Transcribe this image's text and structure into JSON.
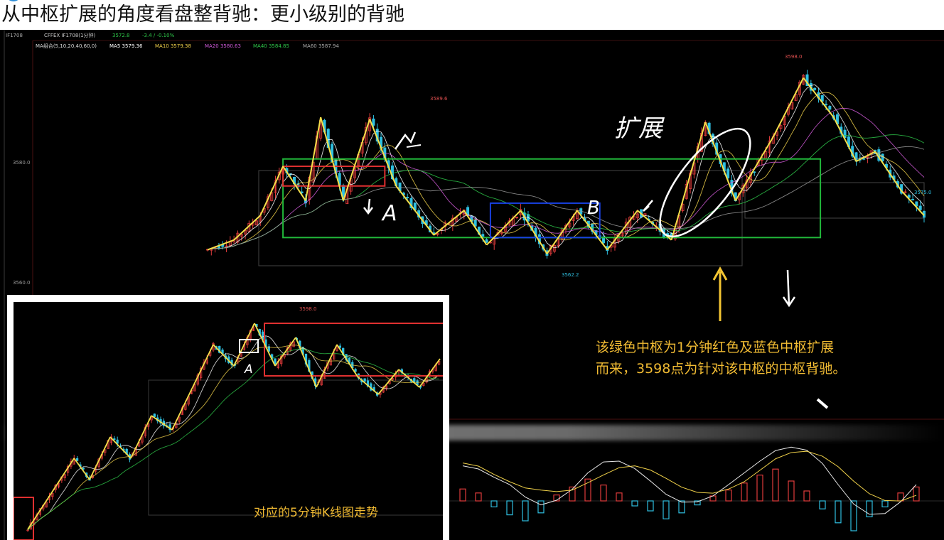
{
  "title": "从中枢扩展的角度看盘整背驰：更小级别的背驰",
  "hud": {
    "symbol": "IF1708",
    "row1": "CFFEX IF1708(1分钟)",
    "last_price": "3572.8",
    "change": "-3.4 / -0.10%",
    "ma_label": "MA组合(5,10,20,40,60,0)",
    "ma5": "MA5 3579.36",
    "ma10": "MA10 3579.38",
    "ma20": "MA20 3580.63",
    "ma40": "MA40 3584.85",
    "ma60": "MA60 3587.94"
  },
  "axis": {
    "y_top": "3580.0",
    "y_bottom": "3560.0"
  },
  "price_labels": {
    "peak_left": "3589.6",
    "peak_right": "3598.0",
    "low_mid": "3562.2",
    "right_end": "3575.0"
  },
  "annotations": {
    "label_a": "A",
    "label_b": "B",
    "expand_text": "扩展",
    "note_line1": "该绿色中枢为1分钟红色及蓝色中枢扩展",
    "note_line2": "而来，3598点为针对该中枢的中枢背驰。"
  },
  "inset": {
    "caption": "对应的5分钟K线图走势",
    "label_a": "A",
    "peak_label": "3598.0"
  },
  "colors": {
    "background": "#000000",
    "zhongshu_green": "#21b83a",
    "zhongshu_red": "#e03030",
    "zhongshu_blue": "#1840e0",
    "stroke_yellow": "#f3df4a",
    "candle_up": "#e03b3b",
    "candle_down": "#2fbfe0",
    "note_text": "#f1bb33"
  },
  "chart_data": {
    "type": "line",
    "title": "从中枢扩展的角度看盘整背驰：更小级别的背驰",
    "xlabel": "",
    "ylabel": "",
    "ylim": [
      3556,
      3602
    ],
    "series": [
      {
        "name": "bi_strokes",
        "x": [
          0,
          14,
          28,
          40,
          52,
          60,
          72,
          86,
          100,
          120,
          136,
          148,
          166,
          180,
          196,
          212,
          228,
          246,
          264,
          280,
          300,
          316,
          332,
          344,
          354,
          368,
          380
        ],
        "values": [
          3563,
          3565,
          3570,
          3580,
          3573,
          3590,
          3573,
          3589.6,
          3576,
          3566,
          3571,
          3564,
          3571,
          3562.2,
          3571,
          3563,
          3571,
          3565,
          3589,
          3573,
          3586,
          3598,
          3590,
          3581,
          3583,
          3575,
          3570
        ]
      }
    ],
    "zhongshu": [
      {
        "name": "green",
        "x_range": [
          40,
          325
        ],
        "y_range": [
          3565.5,
          3581.5
        ]
      },
      {
        "name": "red",
        "x_range": [
          40,
          94
        ],
        "y_range": [
          3576,
          3580
        ]
      },
      {
        "name": "blue",
        "x_range": [
          150,
          208
        ],
        "y_range": [
          3565.5,
          3572.5
        ]
      }
    ],
    "macd_bars": [
      1.2,
      0.8,
      -0.6,
      -1.4,
      -2.0,
      -1.2,
      0.6,
      1.4,
      2.2,
      1.6,
      0.8,
      -0.5,
      -1.0,
      -1.8,
      -1.2,
      -0.4,
      0.5,
      1.1,
      1.8,
      2.6,
      3.2,
      2.0,
      1.0,
      -0.8,
      -2.2,
      -3.0,
      -1.6,
      -0.6,
      0.8,
      1.4
    ]
  }
}
